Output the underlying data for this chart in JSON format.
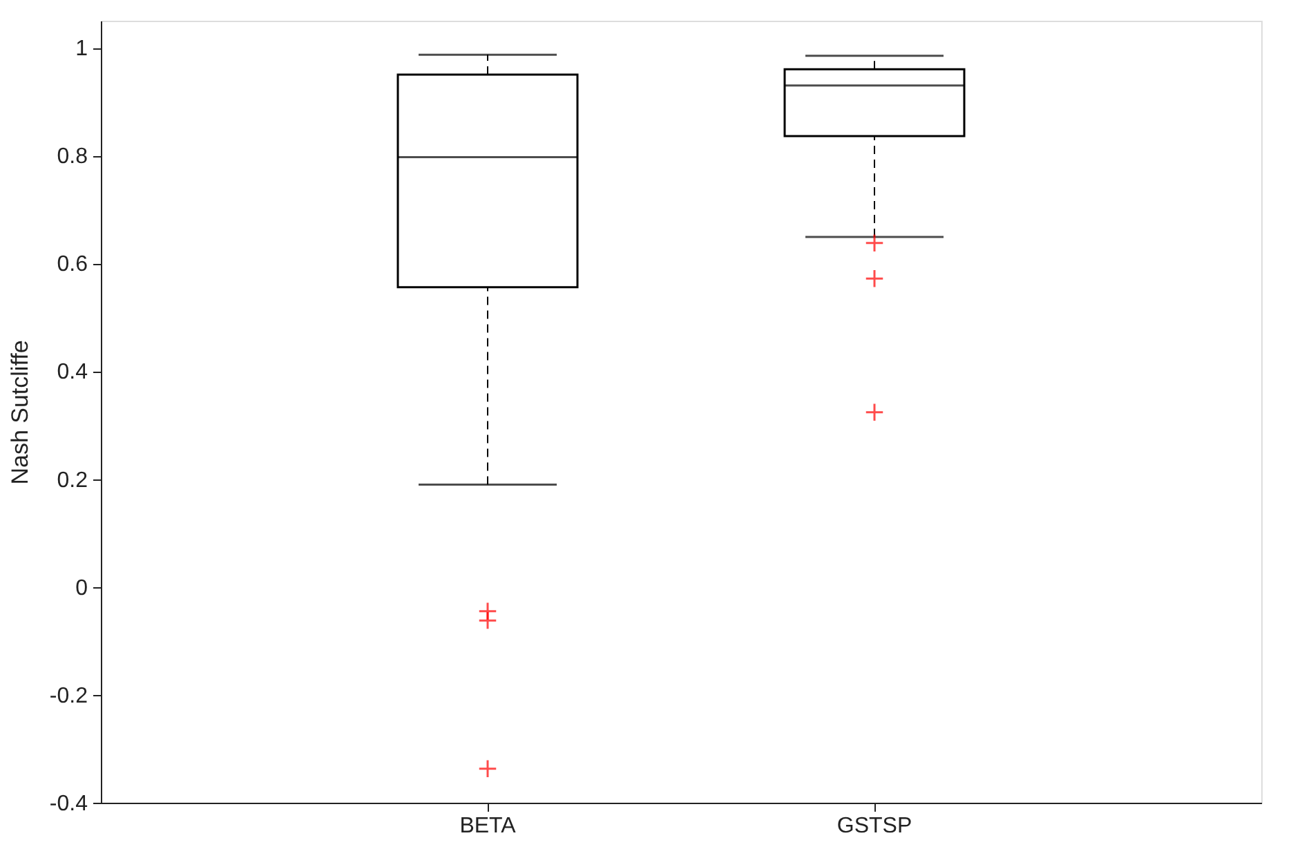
{
  "chart_data": {
    "type": "box",
    "ylabel": "Nash Sutcliffe",
    "categories": [
      "BETA",
      "GSTSP"
    ],
    "boxes": [
      {
        "low": 0.19,
        "q1": 0.556,
        "median": 0.797,
        "q3": 0.95,
        "high": 0.987,
        "outliers": [
          -0.045,
          -0.062,
          -0.337
        ]
      },
      {
        "low": 0.649,
        "q1": 0.836,
        "median": 0.93,
        "q3": 0.96,
        "high": 0.985,
        "outliers": [
          0.638,
          0.572,
          0.324
        ]
      }
    ],
    "ylim": [
      -0.4,
      1.05
    ],
    "yticks": [
      -0.4,
      -0.2,
      0,
      0.2,
      0.4,
      0.6,
      0.8,
      1
    ],
    "grid": false
  }
}
